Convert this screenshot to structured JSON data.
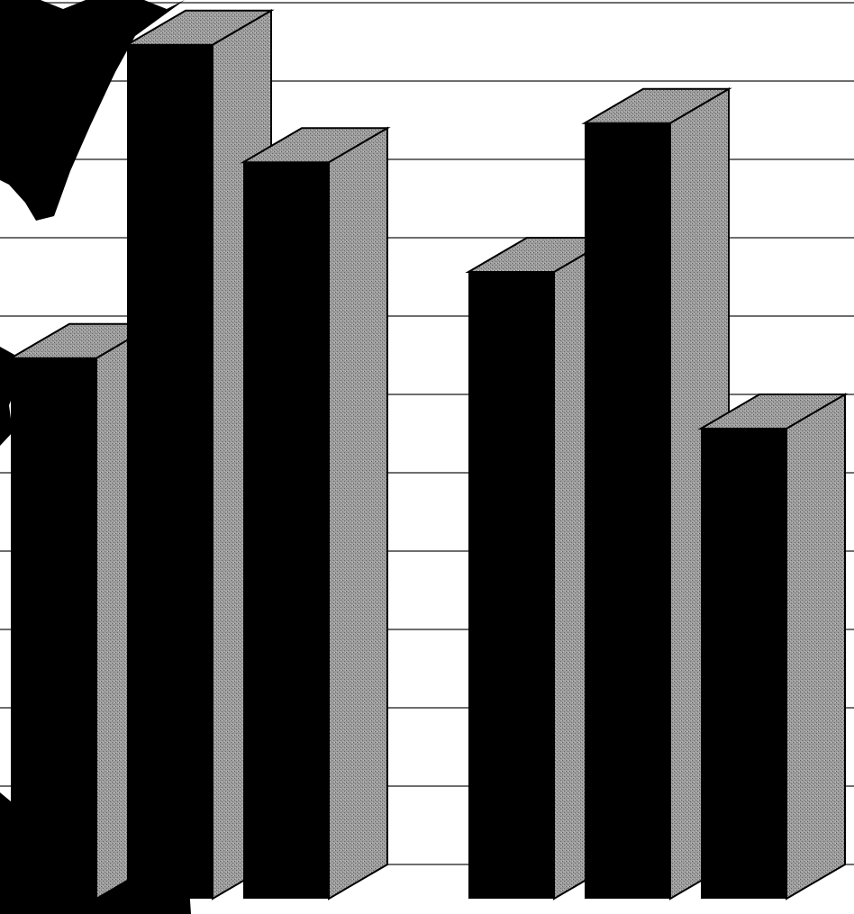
{
  "chart_data": {
    "type": "bar",
    "style": "3d-column",
    "title": "",
    "xlabel": "",
    "ylabel": "",
    "groups": 2,
    "values": [
      6.9,
      10.9,
      9.4,
      8.0,
      9.9,
      6.0
    ],
    "ylim": [
      0,
      11
    ],
    "grid": true,
    "legend": "none",
    "colors": {
      "bar_front": "#000000",
      "bar_side": "#8c8c8c",
      "bar_top": "#9a9a9a",
      "grid": "#6e6e6e",
      "background": "#ffffff"
    }
  },
  "decoration": {
    "icon": "world-map-fragment-icon"
  }
}
